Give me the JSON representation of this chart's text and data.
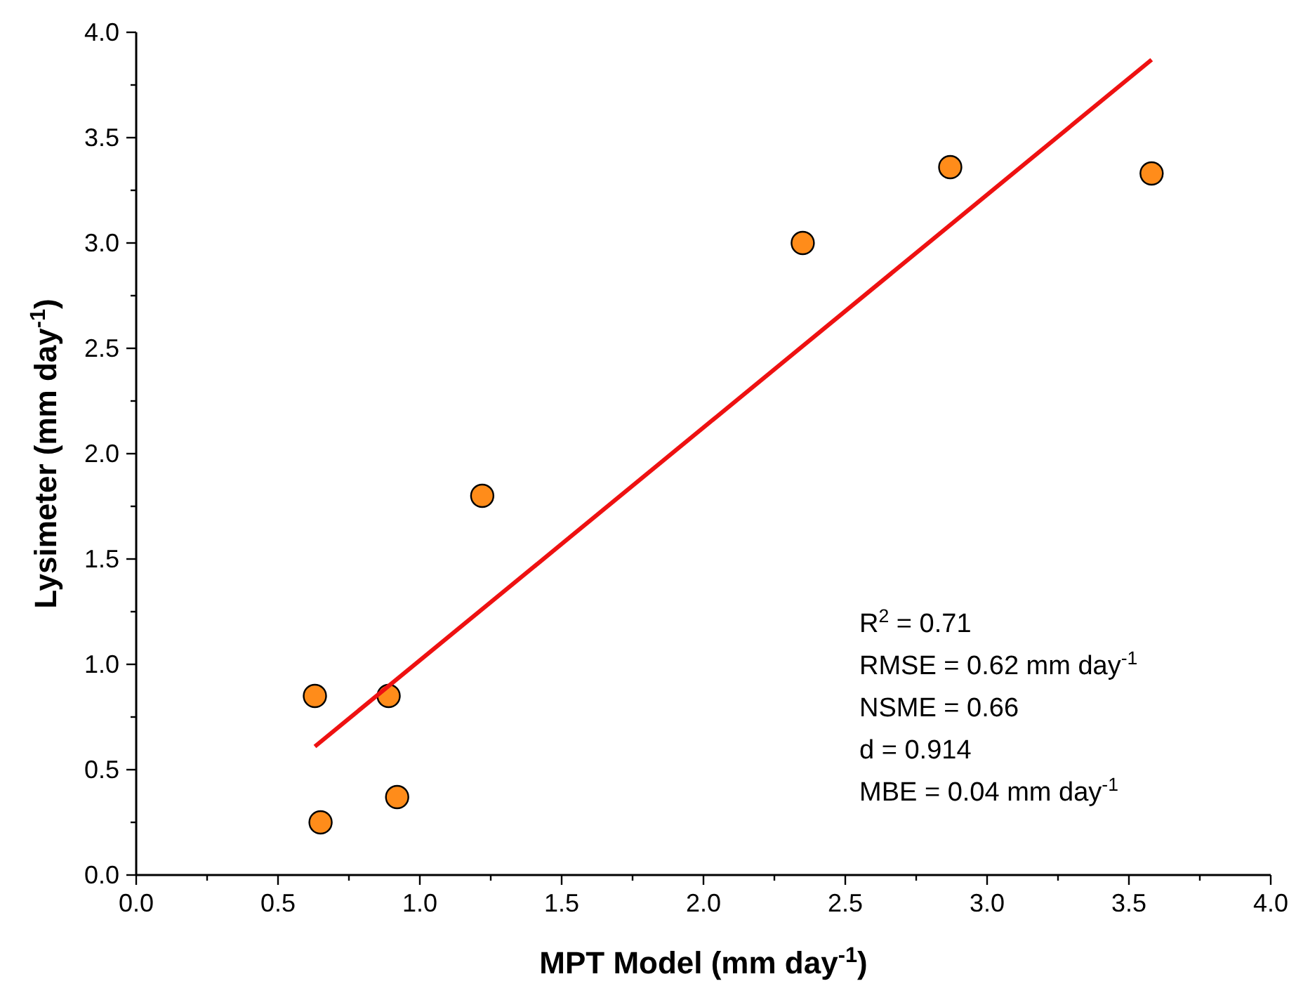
{
  "chart_data": {
    "type": "scatter",
    "xlabel": "MPT Model (mm day$^{-1}$)",
    "ylabel": "Lysimeter (mm day$^{-1}$)",
    "xlim": [
      0,
      4
    ],
    "ylim": [
      0,
      4
    ],
    "xticks": [
      {
        "value": 0,
        "label": "0.0"
      },
      {
        "value": 0.25,
        "label": null
      },
      0.5,
      {
        "value": 0.75,
        "label": null
      },
      {
        "value": 1,
        "label": "1.0"
      },
      {
        "value": 1.25,
        "label": null
      },
      1.5,
      {
        "value": 1.75,
        "label": null
      },
      {
        "value": 2,
        "label": "2.0"
      },
      {
        "value": 2.25,
        "label": null
      },
      2.5,
      {
        "value": 2.75,
        "label": null
      },
      {
        "value": 3,
        "label": "3.0"
      },
      {
        "value": 3.25,
        "label": null
      },
      3.5,
      {
        "value": 3.75,
        "label": null
      },
      {
        "value": 4,
        "label": "4.0"
      }
    ],
    "yticks": [
      {
        "value": 0,
        "label": "0.0"
      },
      {
        "value": 0.25,
        "label": null
      },
      0.5,
      {
        "value": 0.75,
        "label": null
      },
      {
        "value": 1,
        "label": "1.0"
      },
      {
        "value": 1.25,
        "label": null
      },
      1.5,
      {
        "value": 1.75,
        "label": null
      },
      {
        "value": 2,
        "label": "2.0"
      },
      {
        "value": 2.25,
        "label": null
      },
      2.5,
      {
        "value": 2.75,
        "label": null
      },
      {
        "value": 3,
        "label": "3.0"
      },
      {
        "value": 3.25,
        "label": null
      },
      3.5,
      {
        "value": 3.75,
        "label": null
      },
      {
        "value": 4,
        "label": "4.0"
      }
    ],
    "grid": false,
    "series": [
      {
        "color": "#ff8c1a",
        "marker": "circle",
        "x": [
          0.63,
          0.65,
          0.89,
          0.92,
          1.22,
          2.35,
          2.87,
          3.58
        ],
        "values": [
          0.85,
          0.25,
          0.85,
          0.37,
          1.8,
          3.0,
          3.36,
          3.33
        ]
      },
      {
        "type": "line",
        "color": "#ee1111",
        "x": [
          0.63,
          3.58
        ],
        "values": [
          0.61,
          3.87
        ]
      }
    ],
    "annotations": [
      "R$^{2}$ = 0.71",
      "RMSE = 0.62 mm day$^{-1}$",
      "NSME = 0.66",
      "d = 0.914",
      "MBE = 0.04 mm day$^{-1}$"
    ]
  }
}
